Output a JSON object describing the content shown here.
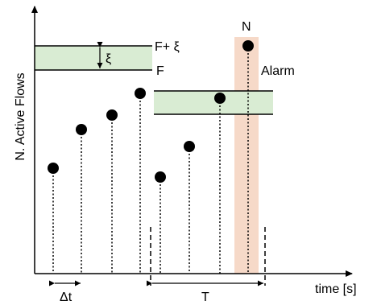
{
  "labels": {
    "y_axis": "N. Active Flows",
    "x_axis": "time [s]",
    "threshold_upper": "F+ ξ",
    "threshold": "F",
    "xi": "ξ",
    "alarm": "Alarm",
    "point_n": "N",
    "delta_t": "Δt",
    "period": "T"
  },
  "colors": {
    "band": "#d9ecd3",
    "alarm_highlight": "#f6d9c8",
    "axis": "#000000",
    "point": "#000000"
  },
  "samples": {
    "window_1": [
      3,
      5,
      5.5,
      6.4
    ],
    "window_2": [
      2.6,
      4.1,
      6.2,
      8.3
    ]
  }
}
